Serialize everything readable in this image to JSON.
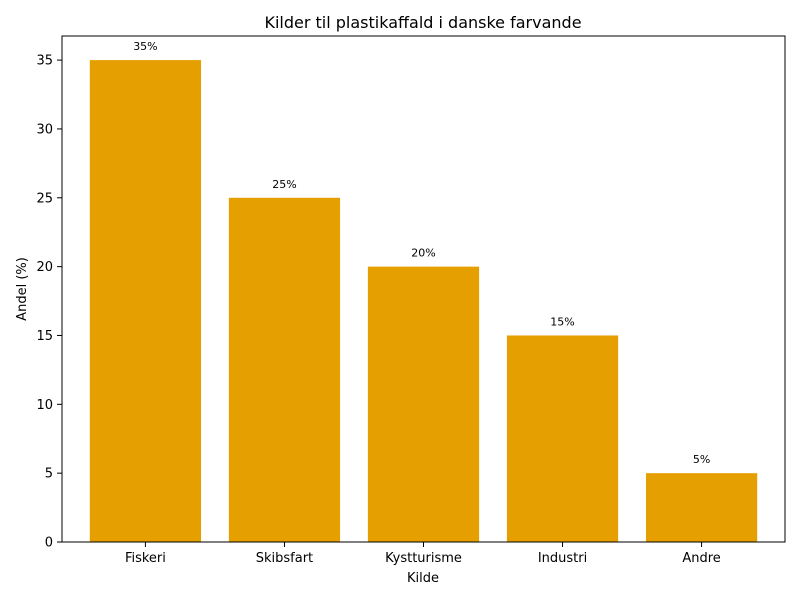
{
  "chart_data": {
    "type": "bar",
    "title": "Kilder til plastikaffald i danske farvande",
    "xlabel": "Kilde",
    "ylabel": "Andel (%)",
    "categories": [
      "Fiskeri",
      "Skibsfart",
      "Kystturisme",
      "Industri",
      "Andre"
    ],
    "values": [
      35,
      25,
      20,
      15,
      5
    ],
    "data_labels": [
      "35%",
      "25%",
      "20%",
      "15%",
      "5%"
    ],
    "ylim": [
      0,
      36.75
    ],
    "yticks": [
      0,
      5,
      10,
      15,
      20,
      25,
      30,
      35
    ],
    "bar_color": "#E69F00",
    "grid": false,
    "legend": "none"
  }
}
